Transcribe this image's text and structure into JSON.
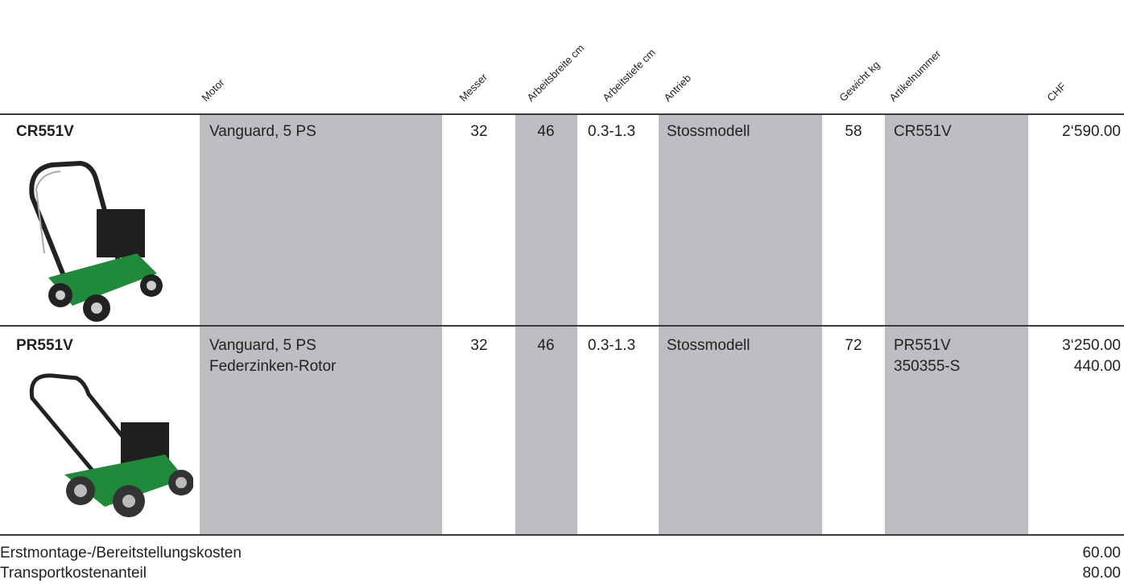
{
  "header": {
    "columns": [
      "Motor",
      "Messer",
      "Arbeitsbreite cm",
      "Arbeitstiefe cm",
      "Antrieb",
      "Gewicht kg",
      "Artikelnummer",
      "CHF"
    ]
  },
  "table": {
    "rows": [
      {
        "model": "CR551V",
        "motor": [
          "Vanguard, 5 PS"
        ],
        "messer": "32",
        "breite": "46",
        "tiefe": "0.3-1.3",
        "antrieb": "Stossmodell",
        "gewicht": "58",
        "artikel": [
          "CR551V"
        ],
        "chf": [
          "2‘590.00"
        ]
      },
      {
        "model": "PR551V",
        "motor": [
          "Vanguard, 5 PS",
          "Federzinken-Rotor"
        ],
        "messer": "32",
        "breite": "46",
        "tiefe": "0.3-1.3",
        "antrieb": "Stossmodell",
        "gewicht": "72",
        "artikel": [
          "PR551V",
          "350355-S"
        ],
        "chf": [
          "3‘250.00",
          "440.00"
        ]
      }
    ]
  },
  "footer": [
    {
      "label": "Erstmontage-/Bereitstellungskosten",
      "price": "60.00"
    },
    {
      "label": "Transportkostenanteil",
      "price": "80.00"
    }
  ]
}
